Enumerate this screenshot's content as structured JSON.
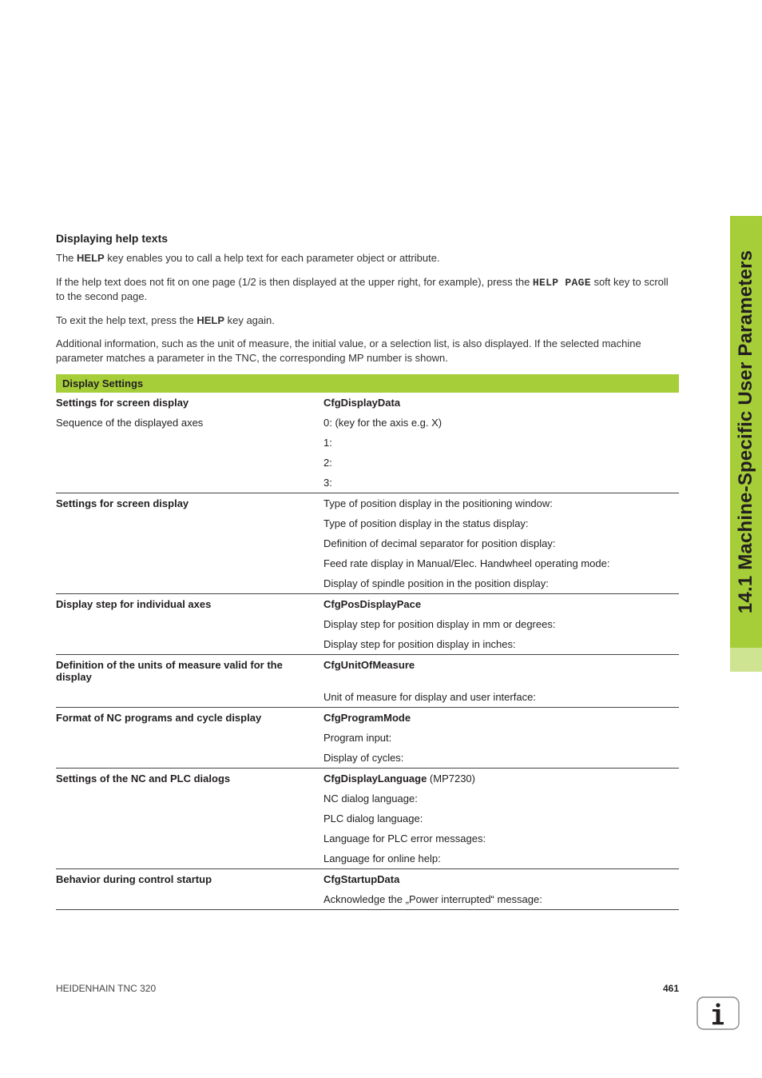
{
  "sideTab": {
    "text": "14.1 Machine-Specific User Parameters",
    "bg_top": "#a6ce39",
    "bg_bottom": "#cfe69a"
  },
  "help": {
    "heading": "Displaying help texts",
    "p1a": "The ",
    "p1_bold": "HELP",
    "p1b": " key enables you to call a help text for each parameter object or attribute.",
    "p2a": "If the help text does not fit on one page (1/2 is then displayed at the upper right, for example), press the ",
    "p2_mono": "HELP PAGE",
    "p2b": " soft key to scroll to the second page.",
    "p3a": "To exit the help text, press the ",
    "p3_bold": "HELP",
    "p3b": " key again.",
    "p4": "Additional information, such as the unit of measure, the initial value, or a selection list, is also displayed. If the selected machine parameter matches a parameter in the TNC, the corresponding MP number is shown."
  },
  "section_title": "Display Settings",
  "groups": [
    {
      "left_bold": "Settings for screen display",
      "right_bold": "CfgDisplayData",
      "rows": [
        {
          "left": "Sequence of the displayed axes",
          "right": "0: (key for the axis e.g. X)"
        },
        {
          "left": "",
          "right": "1:"
        },
        {
          "left": "",
          "right": "2:"
        },
        {
          "left": "",
          "right": "3:"
        }
      ]
    },
    {
      "left_bold": "Settings for screen display",
      "right_bold": "",
      "rows": [
        {
          "left": "",
          "right": "Type of position display in the positioning window:",
          "first_merge": true
        },
        {
          "left": "",
          "right": "Type of position display in the status display:"
        },
        {
          "left": "",
          "right": "Definition of decimal separator for position display:"
        },
        {
          "left": "",
          "right": "Feed rate display in Manual/Elec. Handwheel operating mode:"
        },
        {
          "left": "",
          "right": "Display of spindle position in the position display:"
        }
      ]
    },
    {
      "left_bold": "Display step for individual axes",
      "right_bold": "CfgPosDisplayPace",
      "rows": [
        {
          "left": "",
          "right": "Display step for position display in mm or degrees:"
        },
        {
          "left": "",
          "right": "Display step for position display in inches:"
        }
      ]
    },
    {
      "left_bold": "Definition of the units of measure valid for the display",
      "right_bold": "CfgUnitOfMeasure",
      "rows": [
        {
          "left": "",
          "right": "Unit of measure for display and user interface:"
        }
      ]
    },
    {
      "left_bold": "Format of NC programs and cycle display",
      "right_bold": "CfgProgramMode",
      "rows": [
        {
          "left": "",
          "right": "Program input:"
        },
        {
          "left": "",
          "right": "Display of cycles:"
        }
      ]
    },
    {
      "left_bold": "Settings of the NC and PLC dialogs",
      "right_bold_html": "CfgDisplayLanguage",
      "right_bold_suffix": " (MP7230)",
      "rows": [
        {
          "left": "",
          "right": "NC dialog language:"
        },
        {
          "left": "",
          "right": "PLC dialog language:"
        },
        {
          "left": "",
          "right": "Language for PLC error messages:"
        },
        {
          "left": "",
          "right": "Language for online help:"
        }
      ]
    },
    {
      "left_bold": "Behavior during control startup",
      "right_bold": "CfgStartupData",
      "rows": [
        {
          "left": "",
          "right": "Acknowledge the „Power interrupted“ message:"
        }
      ]
    }
  ],
  "footer": {
    "left": "HEIDENHAIN TNC 320",
    "page": "461"
  },
  "icon": {
    "stroke": "#8a8a8a",
    "radius": 6
  }
}
